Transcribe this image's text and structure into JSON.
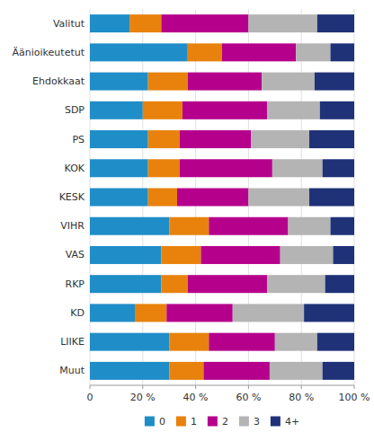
{
  "chart_data": {
    "type": "bar",
    "orientation": "horizontal",
    "stacked": true,
    "categories": [
      "Valitut",
      "Äänioikeutetut",
      "Ehdokkaat",
      "SDP",
      "PS",
      "KOK",
      "KESK",
      "VIHR",
      "VAS",
      "RKP",
      "KD",
      "LIIKE",
      "Muut"
    ],
    "series": [
      {
        "name": "0",
        "color": "#1f8dc8",
        "values": [
          15,
          37,
          22,
          20,
          22,
          22,
          22,
          30,
          27,
          27,
          17,
          30,
          30
        ]
      },
      {
        "name": "1",
        "color": "#e8820c",
        "values": [
          12,
          13,
          15,
          15,
          12,
          12,
          11,
          15,
          15,
          10,
          12,
          15,
          13
        ]
      },
      {
        "name": "2",
        "color": "#b5008c",
        "values": [
          33,
          28,
          28,
          32,
          27,
          35,
          27,
          30,
          30,
          30,
          25,
          25,
          25
        ]
      },
      {
        "name": "3",
        "color": "#b4b4b4",
        "values": [
          26,
          13,
          20,
          20,
          22,
          19,
          23,
          16,
          20,
          22,
          27,
          16,
          20
        ]
      },
      {
        "name": "4+",
        "color": "#1f3278",
        "values": [
          14,
          9,
          15,
          13,
          17,
          12,
          17,
          9,
          8,
          11,
          19,
          14,
          12
        ]
      }
    ],
    "xlim": [
      0,
      100
    ],
    "xticks": [
      0,
      {
        "value": 20,
        "label": "20 %"
      },
      {
        "value": 40,
        "label": "40 %"
      },
      {
        "value": 60,
        "label": "60 %"
      },
      {
        "value": 80,
        "label": "80 %"
      },
      {
        "value": 100,
        "label": "100 %"
      }
    ],
    "grid": true,
    "legend": "bottom"
  }
}
